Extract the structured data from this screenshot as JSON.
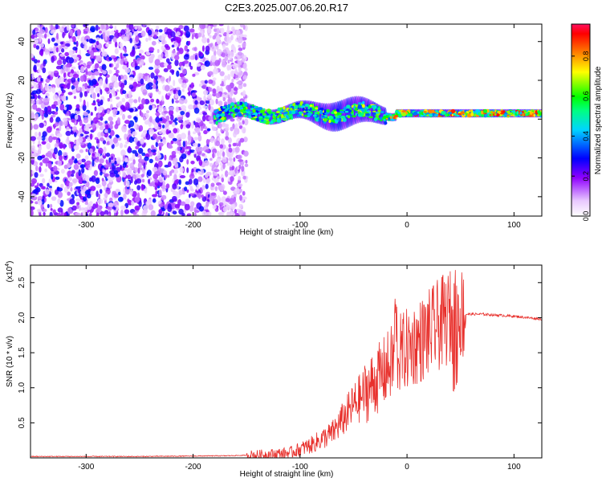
{
  "title": "C2E3.2025.007.06.20.R17",
  "chart_data": [
    {
      "type": "heatmap",
      "name": "spectrogram",
      "xlabel": "Height of straight line (km)",
      "ylabel": "Frequency (Hz)",
      "xlim": [
        -352,
        126
      ],
      "ylim": [
        -50,
        49
      ],
      "xticks": [
        -300,
        -200,
        -100,
        0,
        100
      ],
      "yticks": [
        -40,
        -20,
        0,
        20,
        40
      ],
      "colorbar": {
        "label": "Normalized spectral amplitude",
        "range": [
          0,
          0.96
        ],
        "ticks": [
          0.0,
          0.2,
          0.4,
          0.6,
          0.8
        ]
      },
      "description_regions": {
        "noise_band_x": [
          -352,
          -165
        ],
        "signal_x": [
          -180,
          126
        ],
        "signal_center_hz": 3
      }
    },
    {
      "type": "line",
      "name": "snr",
      "xlabel": "Height of straight line (km)",
      "ylabel": "SNR (10 * v/v)",
      "multiplier": "(x10^4)",
      "multiplier_base": "(x10",
      "multiplier_exp": "4",
      "multiplier_close": ")",
      "xlim": [
        -352,
        126
      ],
      "ylim": [
        0,
        2.75
      ],
      "xticks": [
        -300,
        -200,
        -100,
        0,
        100
      ],
      "yticks": [
        0.5,
        1.0,
        1.5,
        2.0,
        2.5
      ],
      "ytick_labels": [
        "0.5",
        "1.0",
        "1.5",
        "2.0",
        "2.5"
      ],
      "color": "#e8302c",
      "trend_points": [
        [
          -352,
          0.02
        ],
        [
          -250,
          0.02
        ],
        [
          -170,
          0.03
        ],
        [
          -140,
          0.04
        ],
        [
          -110,
          0.07
        ],
        [
          -90,
          0.18
        ],
        [
          -70,
          0.35
        ],
        [
          -50,
          0.75
        ],
        [
          -35,
          1.0
        ],
        [
          -20,
          1.25
        ],
        [
          -10,
          1.45
        ],
        [
          0,
          1.55
        ],
        [
          15,
          1.7
        ],
        [
          30,
          1.9
        ],
        [
          40,
          2.0
        ],
        [
          50,
          2.05
        ],
        [
          70,
          2.05
        ],
        [
          100,
          2.02
        ],
        [
          126,
          1.98
        ]
      ]
    }
  ]
}
